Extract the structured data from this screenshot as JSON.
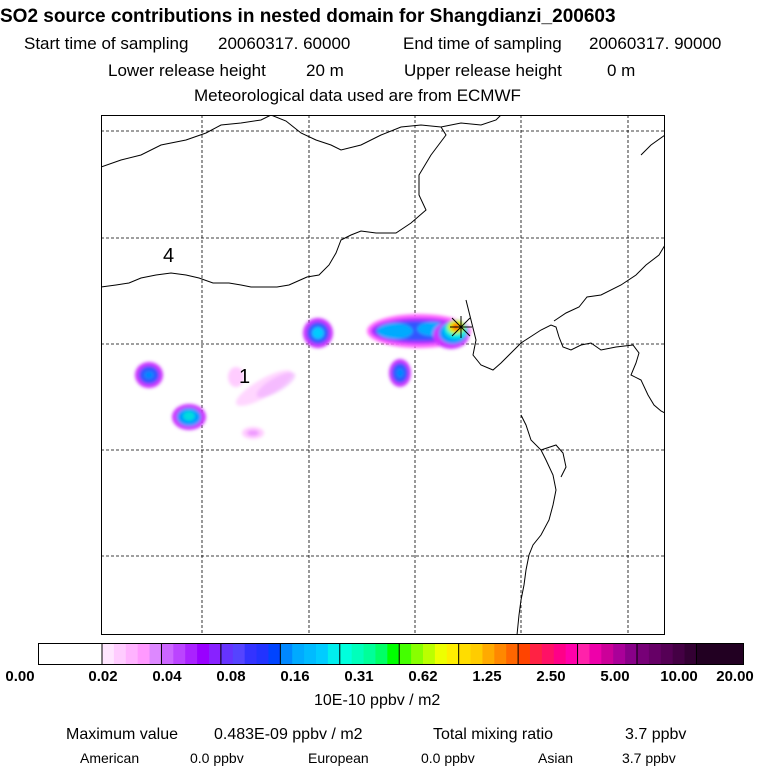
{
  "title": "SO2 source contributions in nested domain for Shangdianzi_200603",
  "header": {
    "start_label": "Start time of sampling",
    "start_value": "20060317. 60000",
    "end_label": "End time of sampling",
    "end_value": "20060317. 90000",
    "lower_label": "Lower release height",
    "lower_value": "20 m",
    "upper_label": "Upper release height",
    "upper_value": "0 m",
    "met_text": "Meteorological data used are from ECMWF"
  },
  "map": {
    "region_labels": [
      "4",
      "1"
    ],
    "receptor_marker": "star-cross",
    "plume_colors": [
      "#ff66ff",
      "#cc33ff",
      "#3355ff",
      "#00aaff",
      "#00e5e5",
      "#aaff00",
      "#ffcc00",
      "#ff4400",
      "#ff1e1e"
    ]
  },
  "colorbar": {
    "labels": [
      "0.00",
      "0.02",
      "0.04",
      "0.08",
      "0.16",
      "0.31",
      "0.62",
      "1.25",
      "2.50",
      "5.00",
      "10.00",
      "20.00"
    ],
    "units": "10E-10 ppbv / m2",
    "colors": [
      "#ffffff",
      "#ffe6ff",
      "#ffccff",
      "#ffb3ff",
      "#ff99ff",
      "#dd88ff",
      "#cc66ff",
      "#bb44ff",
      "#aa22ff",
      "#9900ff",
      "#8822ff",
      "#6633ff",
      "#5544ff",
      "#3333ff",
      "#2233ff",
      "#0044ff",
      "#0088ff",
      "#00aaff",
      "#00bbff",
      "#00ccff",
      "#00eeee",
      "#00ffdd",
      "#00ffbb",
      "#00ff99",
      "#00ff66",
      "#00ff00",
      "#44ff00",
      "#88ff00",
      "#bbff00",
      "#eeff00",
      "#ffee00",
      "#ffdd00",
      "#ffcc00",
      "#ffaa00",
      "#ff8800",
      "#ff6600",
      "#ff4400",
      "#ff2244",
      "#ff1166",
      "#ff0088",
      "#ff00aa",
      "#ff22aa",
      "#ee00aa",
      "#cc0099",
      "#aa0099",
      "#880088",
      "#770077",
      "#660066",
      "#550055",
      "#440044",
      "#330033",
      "#220022",
      "#220022",
      "#220022",
      "#220022"
    ]
  },
  "footer": {
    "max_label": "Maximum value",
    "max_value": "0.483E-09 ppbv / m2",
    "total_label": "Total mixing ratio",
    "total_value": "3.7 ppbv",
    "american_label": "American",
    "american_value": "0.0 ppbv",
    "european_label": "European",
    "european_value": "0.0 ppbv",
    "asian_label": "Asian",
    "asian_value": "3.7 ppbv"
  }
}
